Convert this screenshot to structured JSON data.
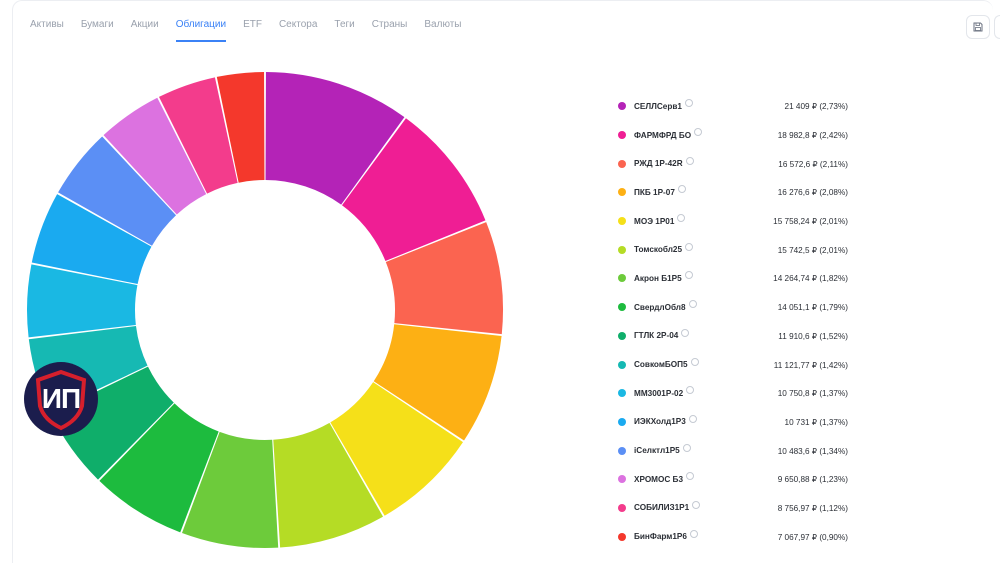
{
  "tabs": [
    {
      "label": "Активы",
      "active": false
    },
    {
      "label": "Бумаги",
      "active": false
    },
    {
      "label": "Акции",
      "active": false
    },
    {
      "label": "Облигации",
      "active": true
    },
    {
      "label": "ETF",
      "active": false
    },
    {
      "label": "Сектора",
      "active": false
    },
    {
      "label": "Теги",
      "active": false
    },
    {
      "label": "Страны",
      "active": false
    },
    {
      "label": "Валюты",
      "active": false
    }
  ],
  "toolbar": {
    "save_icon": "save-icon"
  },
  "badge": {
    "text": "ИП",
    "bg_color": "#1b1d4d",
    "shield_color": "#d61f2c"
  },
  "chart_data": {
    "type": "pie",
    "variant": "donut",
    "series": [
      {
        "name": "СЕЛЛСерв1",
        "value": 21409,
        "label": "21 409 ₽ (2,73%)",
        "color": "#b423b7"
      },
      {
        "name": "ФАРМФРД БО",
        "value": 18982.8,
        "label": "18 982,8 ₽ (2,42%)",
        "color": "#ef1e94"
      },
      {
        "name": "РЖД 1Р-42R",
        "value": 16572.6,
        "label": "16 572,6 ₽ (2,11%)",
        "color": "#fb6450"
      },
      {
        "name": "ПКБ 1Р-07",
        "value": 16276.6,
        "label": "16 276,6 ₽ (2,08%)",
        "color": "#fdb014"
      },
      {
        "name": "МОЭ 1Р01",
        "value": 15758.24,
        "label": "15 758,24 ₽ (2,01%)",
        "color": "#f5e019"
      },
      {
        "name": "Томскобл25",
        "value": 15742.5,
        "label": "15 742,5 ₽ (2,01%)",
        "color": "#b5dc25"
      },
      {
        "name": "Акрон Б1Р5",
        "value": 14264.74,
        "label": "14 264,74 ₽ (1,82%)",
        "color": "#6dcb3b"
      },
      {
        "name": "СвердлОбл8",
        "value": 14051.1,
        "label": "14 051,1 ₽ (1,79%)",
        "color": "#1dbb3e"
      },
      {
        "name": "ГТЛК 2Р-04",
        "value": 11910.6,
        "label": "11 910,6 ₽ (1,52%)",
        "color": "#0fae6a"
      },
      {
        "name": "СовкомБОП5",
        "value": 11121.77,
        "label": "11 121,77 ₽ (1,42%)",
        "color": "#16b9b3"
      },
      {
        "name": "ММ3001Р-02",
        "value": 10750.8,
        "label": "10 750,8 ₽ (1,37%)",
        "color": "#1ab8e3"
      },
      {
        "name": "ИЭКХолд1Р3",
        "value": 10731,
        "label": "10 731 ₽ (1,37%)",
        "color": "#1aaaf0"
      },
      {
        "name": "iСелктл1Р5",
        "value": 10483.6,
        "label": "10 483,6 ₽ (1,34%)",
        "color": "#5b8ff5"
      },
      {
        "name": "ХРОМОС Б3",
        "value": 9650.88,
        "label": "9 650,88 ₽ (1,23%)",
        "color": "#dc72e0"
      },
      {
        "name": "СОБИЛИЗ1Р1",
        "value": 8756.97,
        "label": "8 756,97 ₽ (1,12%)",
        "color": "#f33c8c"
      },
      {
        "name": "БинФарм1Р6",
        "value": 7067.97,
        "label": "7 067,97 ₽ (0,90%)",
        "color": "#f4382c"
      }
    ]
  }
}
